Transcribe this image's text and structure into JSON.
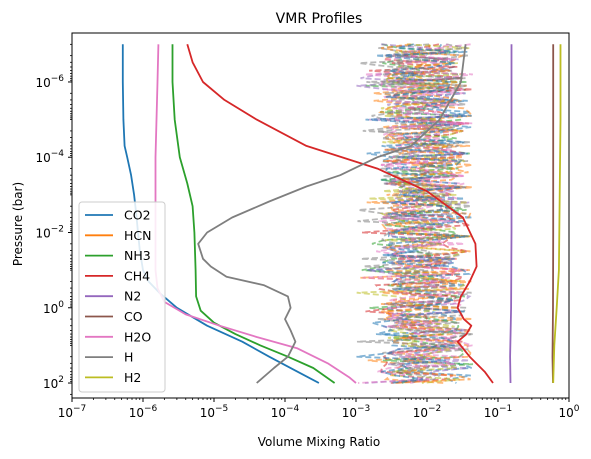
{
  "chart_data": {
    "type": "line",
    "title": "VMR Profiles",
    "xlabel": "Volume Mixing Ratio",
    "ylabel": "Pressure (bar)",
    "xscale": "log",
    "yscale": "log",
    "xlim": [
      1e-07,
      1
    ],
    "ylim": [
      250,
      5e-08
    ],
    "y_inverted": true,
    "legend_position": "lower-left",
    "x_ticks": [
      {
        "value": 1e-07,
        "base": "10",
        "exp": "−7"
      },
      {
        "value": 1e-06,
        "base": "10",
        "exp": "−6"
      },
      {
        "value": 1e-05,
        "base": "10",
        "exp": "−5"
      },
      {
        "value": 0.0001,
        "base": "10",
        "exp": "−4"
      },
      {
        "value": 0.001,
        "base": "10",
        "exp": "−3"
      },
      {
        "value": 0.01,
        "base": "10",
        "exp": "−2"
      },
      {
        "value": 0.1,
        "base": "10",
        "exp": "−1"
      },
      {
        "value": 1,
        "base": "10",
        "exp": "0"
      }
    ],
    "y_ticks": [
      {
        "value": 1e-06,
        "base": "10",
        "exp": "−6"
      },
      {
        "value": 0.0001,
        "base": "10",
        "exp": "−4"
      },
      {
        "value": 0.01,
        "base": "10",
        "exp": "−2"
      },
      {
        "value": 1,
        "base": "10",
        "exp": "0"
      },
      {
        "value": 100,
        "base": "10",
        "exp": "2"
      }
    ],
    "series": [
      {
        "name": "CO2",
        "color": "#1f77b4",
        "points": [
          [
            5.2e-07,
            1e-07
          ],
          [
            5.2e-07,
            1e-06
          ],
          [
            5.3e-07,
            1e-05
          ],
          [
            5.5e-07,
            5e-05
          ],
          [
            6e-07,
            0.0001
          ],
          [
            6.8e-07,
            0.0003
          ],
          [
            7.5e-07,
            0.001
          ],
          [
            8e-07,
            0.003
          ],
          [
            8.5e-07,
            0.01
          ],
          [
            9e-07,
            0.03
          ],
          [
            1e-06,
            0.1
          ],
          [
            1.2e-06,
            0.2
          ],
          [
            1.7e-06,
            0.4
          ],
          [
            3e-06,
            1
          ],
          [
            8e-06,
            3
          ],
          [
            2.5e-05,
            8
          ],
          [
            6e-05,
            20
          ],
          [
            0.00015,
            50
          ],
          [
            0.0003,
            100
          ]
        ]
      },
      {
        "name": "HCN",
        "color": "#ff7f0e",
        "points": []
      },
      {
        "name": "NH3",
        "color": "#2ca02c",
        "points": [
          [
            2.6e-06,
            1e-07
          ],
          [
            2.6e-06,
            1e-06
          ],
          [
            2.8e-06,
            1e-05
          ],
          [
            3.3e-06,
            0.0001
          ],
          [
            4.2e-06,
            0.0005
          ],
          [
            5e-06,
            0.002
          ],
          [
            5.3e-06,
            0.01
          ],
          [
            5.5e-06,
            0.1
          ],
          [
            5.6e-06,
            0.5
          ],
          [
            6.5e-06,
            1.2
          ],
          [
            1e-05,
            2.5
          ],
          [
            2e-05,
            5
          ],
          [
            4.5e-05,
            10
          ],
          [
            0.00011,
            20
          ],
          [
            0.00025,
            40
          ],
          [
            0.0005,
            100
          ]
        ]
      },
      {
        "name": "CH4",
        "color": "#d62728",
        "points": [
          [
            4.2e-06,
            1e-07
          ],
          [
            5e-06,
            3e-07
          ],
          [
            7e-06,
            1e-06
          ],
          [
            1.4e-05,
            3e-06
          ],
          [
            4e-05,
            1e-05
          ],
          [
            0.0002,
            5e-05
          ],
          [
            0.002,
            0.0002
          ],
          [
            0.01,
            0.0008
          ],
          [
            0.032,
            0.004
          ],
          [
            0.048,
            0.02
          ],
          [
            0.05,
            0.08
          ],
          [
            0.04,
            0.2
          ],
          [
            0.03,
            0.5
          ],
          [
            0.027,
            1
          ],
          [
            0.033,
            2
          ],
          [
            0.042,
            3
          ],
          [
            0.036,
            5
          ],
          [
            0.027,
            8
          ],
          [
            0.04,
            20
          ],
          [
            0.065,
            50
          ],
          [
            0.085,
            100
          ]
        ]
      },
      {
        "name": "N2",
        "color": "#9467bd",
        "points": [
          [
            0.155,
            1e-07
          ],
          [
            0.155,
            0.0001
          ],
          [
            0.155,
            0.01
          ],
          [
            0.153,
            1
          ],
          [
            0.148,
            20
          ],
          [
            0.15,
            100
          ]
        ]
      },
      {
        "name": "CO",
        "color": "#8c564b",
        "points": [
          [
            0.6,
            1e-07
          ],
          [
            0.6,
            0.0001
          ],
          [
            0.6,
            0.01
          ],
          [
            0.595,
            1
          ],
          [
            0.585,
            20
          ],
          [
            0.595,
            100
          ]
        ]
      },
      {
        "name": "H2O",
        "color": "#e377c2",
        "points": [
          [
            1.65e-06,
            1e-07
          ],
          [
            1.6e-06,
            1e-06
          ],
          [
            1.55e-06,
            1e-05
          ],
          [
            1.5e-06,
            0.0001
          ],
          [
            1.5e-06,
            0.001
          ],
          [
            1.5e-06,
            0.01
          ],
          [
            1.5e-06,
            0.1
          ],
          [
            1.6e-06,
            0.3
          ],
          [
            2e-06,
            0.7
          ],
          [
            4e-06,
            1.5
          ],
          [
            1.2e-05,
            3
          ],
          [
            4e-05,
            6
          ],
          [
            0.00015,
            12
          ],
          [
            0.0004,
            30
          ],
          [
            0.0008,
            70
          ],
          [
            0.001,
            100
          ]
        ]
      },
      {
        "name": "H",
        "color": "#7f7f7f",
        "points": [
          [
            0.035,
            1e-07
          ],
          [
            0.03,
            1e-06
          ],
          [
            0.015,
            1e-05
          ],
          [
            0.006,
            5e-05
          ],
          [
            0.002,
            0.0001
          ],
          [
            0.0006,
            0.0003
          ],
          [
            0.0002,
            0.0006
          ],
          [
            6e-05,
            0.0015
          ],
          [
            1.8e-05,
            0.004
          ],
          [
            8e-06,
            0.01
          ],
          [
            6e-06,
            0.02
          ],
          [
            7e-06,
            0.05
          ],
          [
            9e-06,
            0.08
          ],
          [
            1.5e-05,
            0.15
          ],
          [
            5e-05,
            0.25
          ],
          [
            0.00011,
            0.5
          ],
          [
            0.00012,
            1
          ],
          [
            0.0001,
            2
          ],
          [
            0.00012,
            4
          ],
          [
            0.00014,
            8
          ],
          [
            0.00011,
            20
          ],
          [
            7e-05,
            40
          ],
          [
            4e-05,
            100
          ]
        ]
      },
      {
        "name": "H2",
        "color": "#bcbd22",
        "points": [
          [
            0.76,
            1e-07
          ],
          [
            0.76,
            1e-05
          ],
          [
            0.74,
            0.001
          ],
          [
            0.72,
            0.1
          ],
          [
            0.67,
            1
          ],
          [
            0.62,
            10
          ],
          [
            0.6,
            100
          ]
        ]
      }
    ],
    "legend": [
      "CO2",
      "HCN",
      "NH3",
      "CH4",
      "N2",
      "CO",
      "H2O",
      "H",
      "H2"
    ],
    "noise_dashes": "dense dashed and faded segments of many species between 1e-3 and 5e-2"
  }
}
